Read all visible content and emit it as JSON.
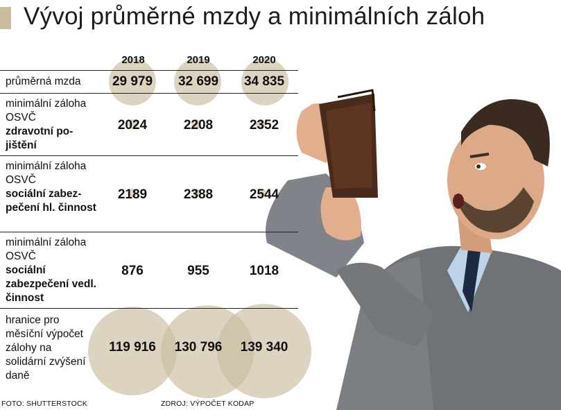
{
  "title": "Vývoj průměrné mzdy a minimálních záloh",
  "columns": [
    "2018",
    "2019",
    "2020"
  ],
  "rows": [
    {
      "label_plain": "průměrná mzda",
      "label_bold": "",
      "values": [
        "29 979",
        "32 699",
        "34 835"
      ]
    },
    {
      "label_plain": "minimální záloha OSVČ",
      "label_bold": "zdravotní po-jištění",
      "values": [
        "2024",
        "2208",
        "2352"
      ]
    },
    {
      "label_plain": "minimální záloha OSVČ",
      "label_bold": "sociální zabez-pečení hl. činnost",
      "values": [
        "2189",
        "2388",
        "2544"
      ]
    },
    {
      "label_plain": "minimální záloha OSVČ",
      "label_bold": "sociální zabezpečení vedl. činnost",
      "values": [
        "876",
        "955",
        "1018"
      ]
    },
    {
      "label_plain": "hranice pro měsíční výpočet zálohy na solidární zvýšení daně",
      "label_bold": "",
      "values": [
        "119 916",
        "130 796",
        "139 340"
      ]
    }
  ],
  "credits": {
    "photo": "FOTO: SHUTTERSTOCK",
    "source": "ZDROJ: VÝPOČET KODAP"
  },
  "colors": {
    "accent": "#c9bc9f",
    "rule": "#222222"
  },
  "chart_data": {
    "type": "table",
    "title": "Vývoj průměrné mzdy a minimálních záloh",
    "columns": [
      "2018",
      "2019",
      "2020"
    ],
    "rows": [
      {
        "name": "průměrná mzda",
        "values": [
          29979,
          32699,
          34835
        ]
      },
      {
        "name": "minimální záloha OSVČ zdravotní pojištění",
        "values": [
          2024,
          2208,
          2352
        ]
      },
      {
        "name": "minimální záloha OSVČ sociální zabezpečení hl. činnost",
        "values": [
          2189,
          2388,
          2544
        ]
      },
      {
        "name": "minimální záloha OSVČ sociální zabezpečení vedl. činnost",
        "values": [
          876,
          955,
          1018
        ]
      },
      {
        "name": "hranice pro měsíční výpočet zálohy na solidární zvýšení daně",
        "values": [
          119916,
          130796,
          139340
        ]
      }
    ]
  }
}
